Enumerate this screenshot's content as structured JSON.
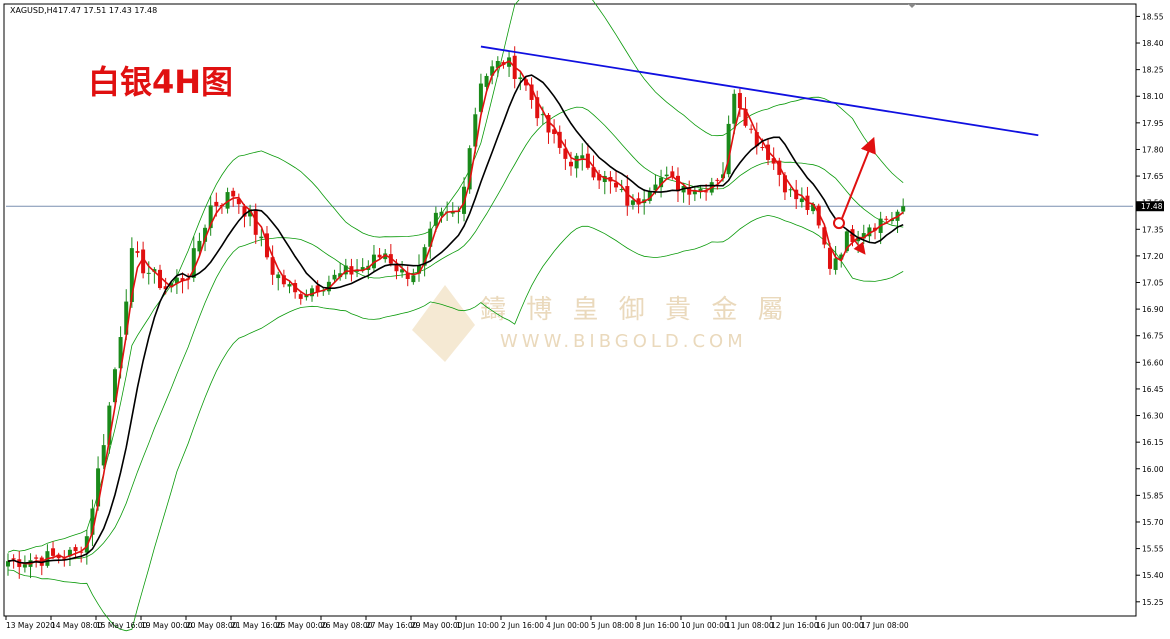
{
  "header": {
    "symbol": "XAGUSD,H4",
    "ohlc": "17.47 17.51 17.43 17.48"
  },
  "title_overlay": "白银4H图",
  "watermark": {
    "brand": "鑄 博 皇 御 貴 金 屬",
    "url": "WWW.BIBGOLD.COM"
  },
  "current_price_label": "17.48",
  "colors": {
    "up": "#1a8a1a",
    "down": "#e01010",
    "bollinger": "#0a9a0a",
    "ma_fast": "#e01010",
    "ma_slow": "#000000",
    "trendline": "#1010e0",
    "arrow": "#e01010",
    "price_line": "#7a8fb0"
  },
  "chart_data": {
    "type": "candlestick",
    "title": "白银4H图",
    "ylim": [
      15.17,
      18.62
    ],
    "price_ticks": [
      "18.55",
      "18.40",
      "18.25",
      "18.10",
      "17.95",
      "17.80",
      "17.65",
      "17.50",
      "17.35",
      "17.20",
      "17.05",
      "16.90",
      "16.75",
      "16.60",
      "16.45",
      "16.30",
      "16.15",
      "16.00",
      "15.85",
      "15.70",
      "15.55",
      "15.40",
      "15.25"
    ],
    "time_labels": [
      "13 May 2020",
      "14 May 08:00",
      "15 May 16:00",
      "19 May 00:00",
      "20 May 08:00",
      "21 May 16:00",
      "25 May 00:00",
      "26 May 08:00",
      "27 May 16:00",
      "29 May 00:00",
      "1 Jun 10:00",
      "2 Jun 16:00",
      "4 Jun 00:00",
      "5 Jun 08:00",
      "8 Jun 16:00",
      "10 Jun 00:00",
      "11 Jun 08:00",
      "12 Jun 16:00",
      "16 Jun 00:00",
      "17 Jun 08:00"
    ],
    "close_anchors": [
      [
        0,
        15.48
      ],
      [
        8,
        15.5
      ],
      [
        12,
        15.52
      ],
      [
        14,
        15.62
      ],
      [
        18,
        16.35
      ],
      [
        22,
        17.2
      ],
      [
        28,
        17.02
      ],
      [
        32,
        17.1
      ],
      [
        36,
        17.48
      ],
      [
        40,
        17.55
      ],
      [
        43,
        17.42
      ],
      [
        47,
        17.12
      ],
      [
        51,
        16.98
      ],
      [
        56,
        17.05
      ],
      [
        60,
        17.1
      ],
      [
        64,
        17.15
      ],
      [
        67,
        17.22
      ],
      [
        70,
        17.1
      ],
      [
        73,
        17.12
      ],
      [
        76,
        17.4
      ],
      [
        80,
        17.45
      ],
      [
        84,
        18.2
      ],
      [
        88,
        18.3
      ],
      [
        91,
        18.22
      ],
      [
        95,
        17.95
      ],
      [
        99,
        17.75
      ],
      [
        103,
        17.72
      ],
      [
        107,
        17.6
      ],
      [
        111,
        17.48
      ],
      [
        115,
        17.65
      ],
      [
        119,
        17.6
      ],
      [
        123,
        17.58
      ],
      [
        127,
        17.68
      ],
      [
        129,
        18.15
      ],
      [
        132,
        17.9
      ],
      [
        135,
        17.78
      ],
      [
        139,
        17.55
      ],
      [
        143,
        17.45
      ],
      [
        146,
        17.15
      ],
      [
        149,
        17.3
      ],
      [
        153,
        17.38
      ],
      [
        157,
        17.42
      ],
      [
        159,
        17.47
      ]
    ],
    "n_bars": 160,
    "seed": 7,
    "band_width_anchors": [
      [
        0,
        0.05
      ],
      [
        14,
        0.15
      ],
      [
        22,
        0.8
      ],
      [
        30,
        0.55
      ],
      [
        45,
        0.5
      ],
      [
        60,
        0.25
      ],
      [
        75,
        0.2
      ],
      [
        84,
        0.45
      ],
      [
        90,
        0.9
      ],
      [
        100,
        0.7
      ],
      [
        110,
        0.55
      ],
      [
        125,
        0.3
      ],
      [
        135,
        0.3
      ],
      [
        150,
        0.45
      ],
      [
        159,
        0.25
      ]
    ],
    "trendline": {
      "from_bar": 84,
      "from_price": 18.38,
      "to_bar": 183,
      "to_price": 17.88
    },
    "arrows": [
      {
        "kind": "up",
        "from": [
          18.5,
          17.4
        ],
        "to": [
          19.2,
          17.85
        ]
      },
      {
        "kind": "down",
        "from": [
          18.7,
          17.32
        ],
        "to": [
          19.0,
          17.22
        ]
      }
    ],
    "current_price": 17.48
  }
}
